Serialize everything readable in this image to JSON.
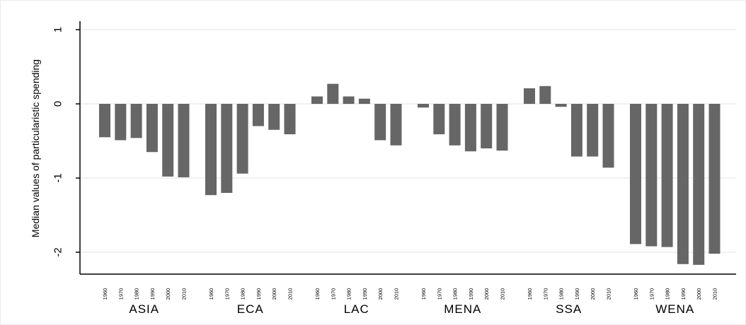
{
  "chart_data": {
    "type": "bar",
    "title": "",
    "xlabel": "",
    "ylabel": "Median values of particularistic spending",
    "ylim": [
      -2.3,
      1.2
    ],
    "yticks": [
      1,
      0,
      -1,
      -2
    ],
    "ytick_labels": [
      "1",
      "0",
      "-1",
      "-2"
    ],
    "grid": true,
    "bar_color": "#666666",
    "grid_color": "#e6e6e6",
    "groups": [
      {
        "name": "ASIA",
        "categories": [
          "1960",
          "1970",
          "1980",
          "1990",
          "2000",
          "2010"
        ],
        "values": [
          -0.45,
          -0.49,
          -0.46,
          -0.65,
          -0.98,
          -0.99
        ]
      },
      {
        "name": "ECA",
        "categories": [
          "1960",
          "1970",
          "1980",
          "1990",
          "2000",
          "2010"
        ],
        "values": [
          -1.23,
          -1.2,
          -0.94,
          -0.3,
          -0.35,
          -0.41
        ]
      },
      {
        "name": "LAC",
        "categories": [
          "1960",
          "1970",
          "1980",
          "1990",
          "2000",
          "2010"
        ],
        "values": [
          0.1,
          0.27,
          0.1,
          0.07,
          -0.49,
          -0.56
        ]
      },
      {
        "name": "MENA",
        "categories": [
          "1960",
          "1970",
          "1980",
          "1990",
          "2000",
          "2010"
        ],
        "values": [
          -0.05,
          -0.41,
          -0.56,
          -0.64,
          -0.6,
          -0.63
        ]
      },
      {
        "name": "SSA",
        "categories": [
          "1960",
          "1970",
          "1980",
          "1990",
          "2000",
          "2010"
        ],
        "values": [
          0.21,
          0.24,
          -0.04,
          -0.71,
          -0.71,
          -0.86
        ]
      },
      {
        "name": "WENA",
        "categories": [
          "1960",
          "1970",
          "1980",
          "1990",
          "2000",
          "2010"
        ],
        "values": [
          -1.89,
          -1.92,
          -1.93,
          -2.16,
          -2.17,
          -2.02
        ]
      }
    ]
  }
}
